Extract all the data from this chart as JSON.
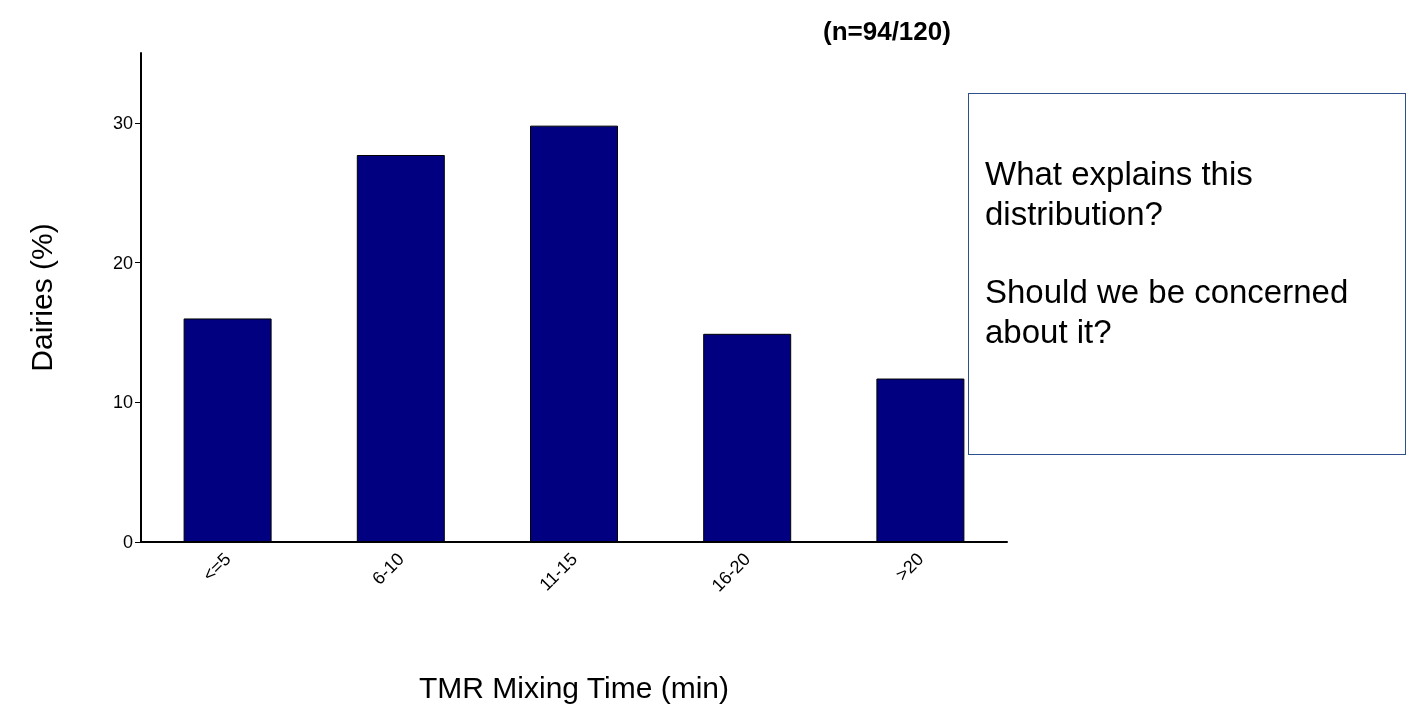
{
  "chart_data": {
    "type": "bar",
    "title": "(n=94/120)",
    "xlabel": "TMR Mixing Time (min)",
    "ylabel": "Dairies (%)",
    "categories": [
      "<=5",
      "6-10",
      "11-15",
      "16-20",
      ">20"
    ],
    "values": [
      16,
      27.7,
      29.8,
      14.9,
      11.7
    ],
    "color": "#000080",
    "ylim": [
      0,
      35
    ],
    "yticks": [
      0,
      10,
      20,
      30
    ],
    "grid": false,
    "annotations": [
      "What explains this distribution?",
      "Should we be concerned about it?"
    ]
  }
}
